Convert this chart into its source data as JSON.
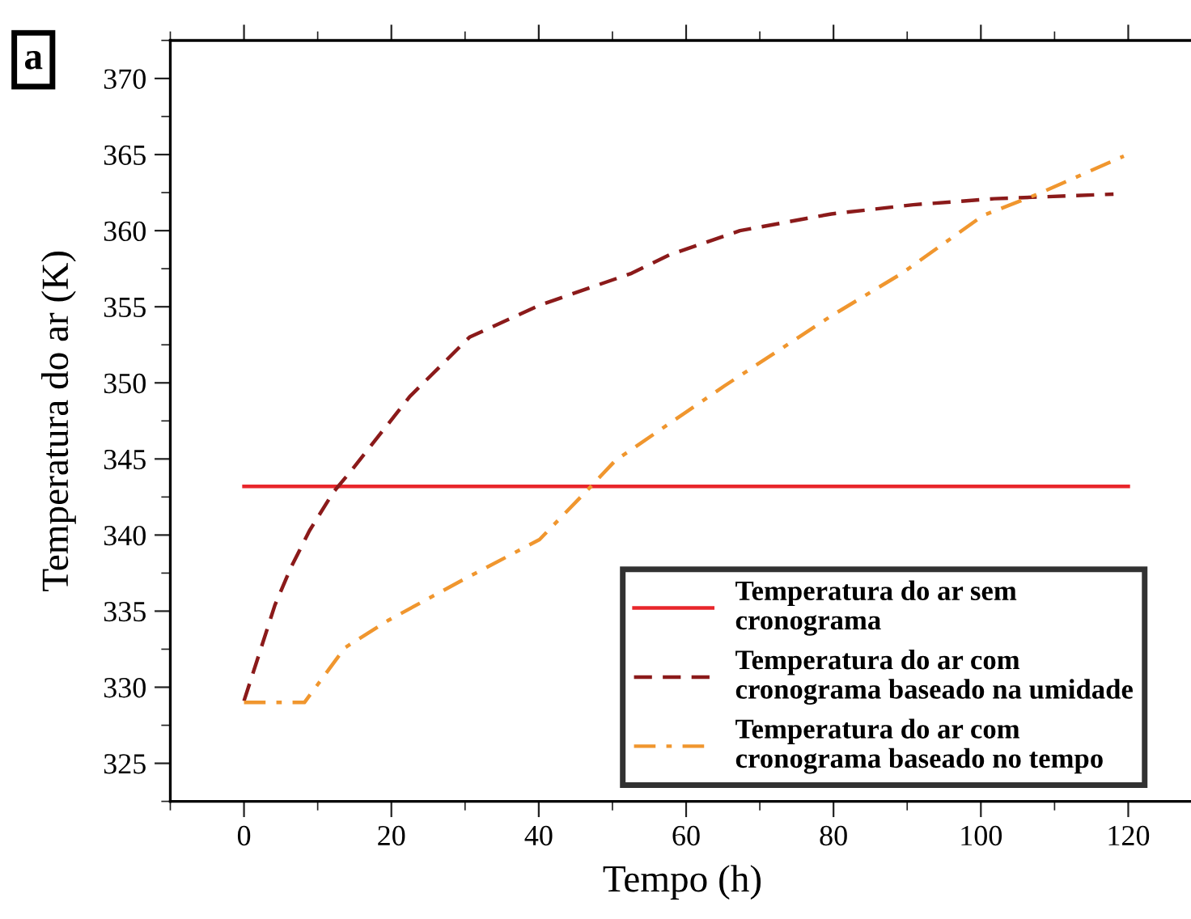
{
  "chart_data": {
    "type": "line",
    "xlabel": "Tempo (h)",
    "ylabel": "Temperatura do ar (K)",
    "annotations": [
      "a"
    ],
    "xlim": [
      -10,
      129
    ],
    "ylim": [
      322.5,
      372.5
    ],
    "xticks": [
      0,
      20,
      40,
      60,
      80,
      100,
      120
    ],
    "yticks": [
      325,
      330,
      335,
      340,
      345,
      350,
      355,
      360,
      365,
      370
    ],
    "grid": false,
    "legend": "bottom right",
    "series": [
      {
        "name": "Temperatura do ar sem\ncronograma",
        "color": "#e8262b",
        "line_style": "solid",
        "x": [
          0,
          120
        ],
        "values": [
          343.2,
          343.2
        ]
      },
      {
        "name": "Temperatura do ar com\ncronograma baseado na umidade",
        "color": "#8b1a1a",
        "line_style": "dashed",
        "x": [
          0,
          4.2,
          6.4,
          8.9,
          12.1,
          14.5,
          22.5,
          30.6,
          40.1,
          52.6,
          57.7,
          67.3,
          79.7,
          90.8,
          101.8,
          118
        ],
        "values": [
          329.1,
          335.4,
          337.9,
          340.3,
          342.8,
          344.2,
          349.1,
          353.0,
          355.1,
          357.2,
          358.4,
          360.0,
          361.1,
          361.7,
          362.1,
          362.4
        ]
      },
      {
        "name": "Temperatura do ar com\ncronograma baseado no tempo",
        "color": "#f0962e",
        "line_style": "dashdot",
        "x": [
          0,
          8.2,
          13.7,
          19.6,
          29.1,
          40.1,
          46.7,
          50.4,
          65.2,
          79.7,
          89.3,
          100.3,
          107.7,
          119.4
        ],
        "values": [
          329,
          329,
          332.6,
          334.4,
          336.9,
          339.7,
          343.0,
          344.9,
          349.8,
          354.4,
          357.2,
          361.0,
          362.4,
          364.9
        ]
      }
    ]
  }
}
